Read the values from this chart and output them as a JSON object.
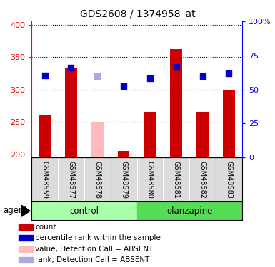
{
  "title": "GDS2608 / 1374958_at",
  "samples": [
    "GSM48559",
    "GSM48577",
    "GSM48578",
    "GSM48579",
    "GSM48580",
    "GSM48581",
    "GSM48582",
    "GSM48583"
  ],
  "bar_values": [
    260,
    332,
    null,
    205,
    264,
    362,
    265,
    300
  ],
  "bar_absent_values": [
    null,
    null,
    250,
    null,
    null,
    null,
    null,
    null
  ],
  "rank_values": [
    322,
    334,
    null,
    305,
    317,
    335,
    320,
    325
  ],
  "rank_absent_values": [
    null,
    null,
    320,
    null,
    null,
    null,
    null,
    null
  ],
  "bar_color": "#cc0000",
  "bar_absent_color": "#ffbbbb",
  "rank_color": "#0000cc",
  "rank_absent_color": "#aaaadd",
  "ylim_left": [
    195,
    405
  ],
  "ylim_right": [
    0,
    100
  ],
  "yticks_left": [
    200,
    250,
    300,
    350,
    400
  ],
  "yticks_right": [
    0,
    25,
    50,
    75,
    100
  ],
  "ytick_labels_right": [
    "0",
    "25",
    "50",
    "75",
    "100%"
  ],
  "control_color": "#aaffaa",
  "olanzapine_color": "#55dd55",
  "sample_bg_color": "#bbbbbb",
  "bar_width": 0.45,
  "rank_marker_size": 40,
  "legend_colors": [
    "#cc0000",
    "#0000cc",
    "#ffbbbb",
    "#aaaadd"
  ],
  "legend_labels": [
    "count",
    "percentile rank within the sample",
    "value, Detection Call = ABSENT",
    "rank, Detection Call = ABSENT"
  ]
}
